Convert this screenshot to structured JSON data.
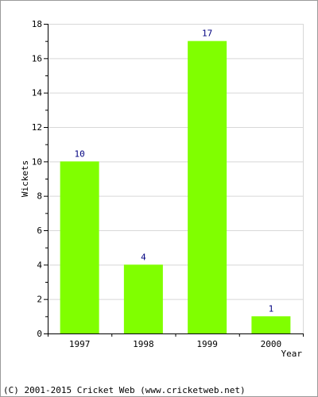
{
  "chart_data": {
    "type": "bar",
    "categories": [
      "1997",
      "1998",
      "1999",
      "2000"
    ],
    "values": [
      10,
      4,
      17,
      1
    ],
    "data_labels": [
      "10",
      "4",
      "17",
      "1"
    ],
    "xlabel": "Year",
    "ylabel": "Wickets",
    "ylim": [
      0,
      18
    ],
    "yticks": [
      0,
      2,
      4,
      6,
      8,
      10,
      12,
      14,
      16,
      18
    ],
    "ytick_labels": [
      "0",
      "2",
      "4",
      "6",
      "8",
      "10",
      "12",
      "14",
      "16",
      "18"
    ],
    "grid": true,
    "bar_color": "#80ff00",
    "grid_color": "#d8d8d8"
  },
  "footer": {
    "copyright": "(C) 2001-2015 Cricket Web (www.cricketweb.net)"
  }
}
